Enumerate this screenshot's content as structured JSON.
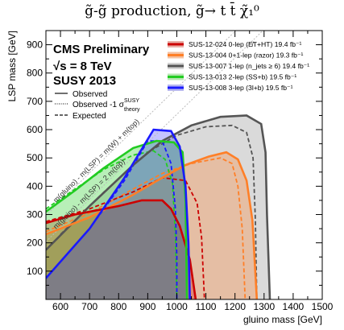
{
  "chart_data": {
    "type": "area",
    "title": "g̃-g̃ production, g̃→ t t̄ χ̃₁⁰",
    "xlabel": "gluino mass [GeV]",
    "ylabel": "LSP mass [GeV]",
    "xlim": [
      550,
      1500
    ],
    "ylim": [
      0,
      950
    ],
    "xticks": [
      "600",
      "700",
      "800",
      "900",
      "1000",
      "1100",
      "1200",
      "1300",
      "1400",
      "1500"
    ],
    "yticks": [
      "100",
      "200",
      "300",
      "400",
      "500",
      "600",
      "700",
      "800",
      "900"
    ],
    "header": {
      "collab": "CMS Preliminary",
      "energy": "√s = 8 TeV",
      "conf": "SUSY 2013"
    },
    "style_legend": {
      "observed": "Observed",
      "observed_1sigma": "Observed -1 σ",
      "sigma_sup": "SUSY",
      "sigma_sub": "theory",
      "expected": "Expected"
    },
    "diagonals": [
      {
        "label": "m(gluino) - m(LSP) = m(W) + m(top)",
        "offset": 253
      },
      {
        "label": "m(gluino) - m(LSP) = 2 m(top)",
        "offset": 346
      }
    ],
    "series": [
      {
        "name": "SUS-12-024 0-lep (E̸T+HT) 19.4 fb⁻¹",
        "color": "#cc0000",
        "observed": [
          [
            550,
            270
          ],
          [
            650,
            300
          ],
          [
            800,
            330
          ],
          [
            880,
            350
          ],
          [
            950,
            350
          ],
          [
            980,
            320
          ],
          [
            1010,
            260
          ],
          [
            1045,
            140
          ],
          [
            1065,
            0
          ]
        ],
        "expected": [
          [
            550,
            275
          ],
          [
            700,
            320
          ],
          [
            850,
            380
          ],
          [
            950,
            430
          ],
          [
            1030,
            420
          ],
          [
            1070,
            340
          ],
          [
            1085,
            220
          ],
          [
            1095,
            0
          ]
        ]
      },
      {
        "name": "SUS-13-004 0+1-lep (razor) 19.3 fb⁻¹",
        "color": "#ff7f27",
        "observed": [
          [
            550,
            230
          ],
          [
            700,
            290
          ],
          [
            850,
            370
          ],
          [
            950,
            430
          ],
          [
            1030,
            475
          ],
          [
            1110,
            505
          ],
          [
            1170,
            520
          ],
          [
            1210,
            495
          ],
          [
            1240,
            420
          ],
          [
            1260,
            280
          ],
          [
            1275,
            0
          ]
        ],
        "expected": [
          [
            550,
            240
          ],
          [
            700,
            305
          ],
          [
            850,
            390
          ],
          [
            950,
            445
          ],
          [
            1050,
            480
          ],
          [
            1150,
            500
          ],
          [
            1190,
            480
          ],
          [
            1210,
            400
          ],
          [
            1225,
            250
          ],
          [
            1235,
            0
          ]
        ]
      },
      {
        "name": "SUS-13-007 1-lep (n_jets ≥ 6) 19.4 fb⁻¹",
        "color": "#555555",
        "observed": [
          [
            550,
            175
          ],
          [
            700,
            330
          ],
          [
            850,
            475
          ],
          [
            950,
            560
          ],
          [
            1050,
            615
          ],
          [
            1150,
            645
          ],
          [
            1240,
            650
          ],
          [
            1290,
            620
          ],
          [
            1305,
            520
          ],
          [
            1310,
            300
          ],
          [
            1320,
            0
          ]
        ],
        "expected": [
          [
            600,
            230
          ],
          [
            750,
            380
          ],
          [
            900,
            520
          ],
          [
            1000,
            580
          ],
          [
            1100,
            610
          ],
          [
            1190,
            615
          ],
          [
            1240,
            590
          ],
          [
            1262,
            500
          ],
          [
            1270,
            280
          ],
          [
            1275,
            0
          ]
        ]
      },
      {
        "name": "SUS-13-013 2-lep (SS+b) 19.5 fb⁻¹",
        "color": "#22cc22",
        "observed": [
          [
            550,
            310
          ],
          [
            650,
            385
          ],
          [
            750,
            465
          ],
          [
            850,
            535
          ],
          [
            930,
            560
          ],
          [
            990,
            555
          ],
          [
            1020,
            520
          ],
          [
            1030,
            350
          ],
          [
            1035,
            0
          ]
        ],
        "expected": [
          [
            550,
            320
          ],
          [
            650,
            390
          ],
          [
            750,
            460
          ],
          [
            850,
            510
          ],
          [
            920,
            525
          ],
          [
            960,
            495
          ],
          [
            985,
            410
          ],
          [
            995,
            230
          ],
          [
            1000,
            0
          ]
        ]
      },
      {
        "name": "SUS-13-008 3-lep (3l+b) 19.5 fb⁻¹",
        "color": "#1a1aff",
        "observed": [
          [
            550,
            75
          ],
          [
            700,
            250
          ],
          [
            820,
            430
          ],
          [
            920,
            600
          ],
          [
            980,
            595
          ],
          [
            1010,
            540
          ],
          [
            1030,
            400
          ],
          [
            1040,
            200
          ],
          [
            1045,
            0
          ]
        ],
        "expected": [
          [
            550,
            75
          ],
          [
            700,
            250
          ],
          [
            820,
            420
          ],
          [
            900,
            560
          ],
          [
            950,
            560
          ],
          [
            980,
            480
          ],
          [
            995,
            320
          ],
          [
            1000,
            150
          ],
          [
            1000,
            0
          ]
        ]
      }
    ],
    "legend_placement": "top-right"
  }
}
